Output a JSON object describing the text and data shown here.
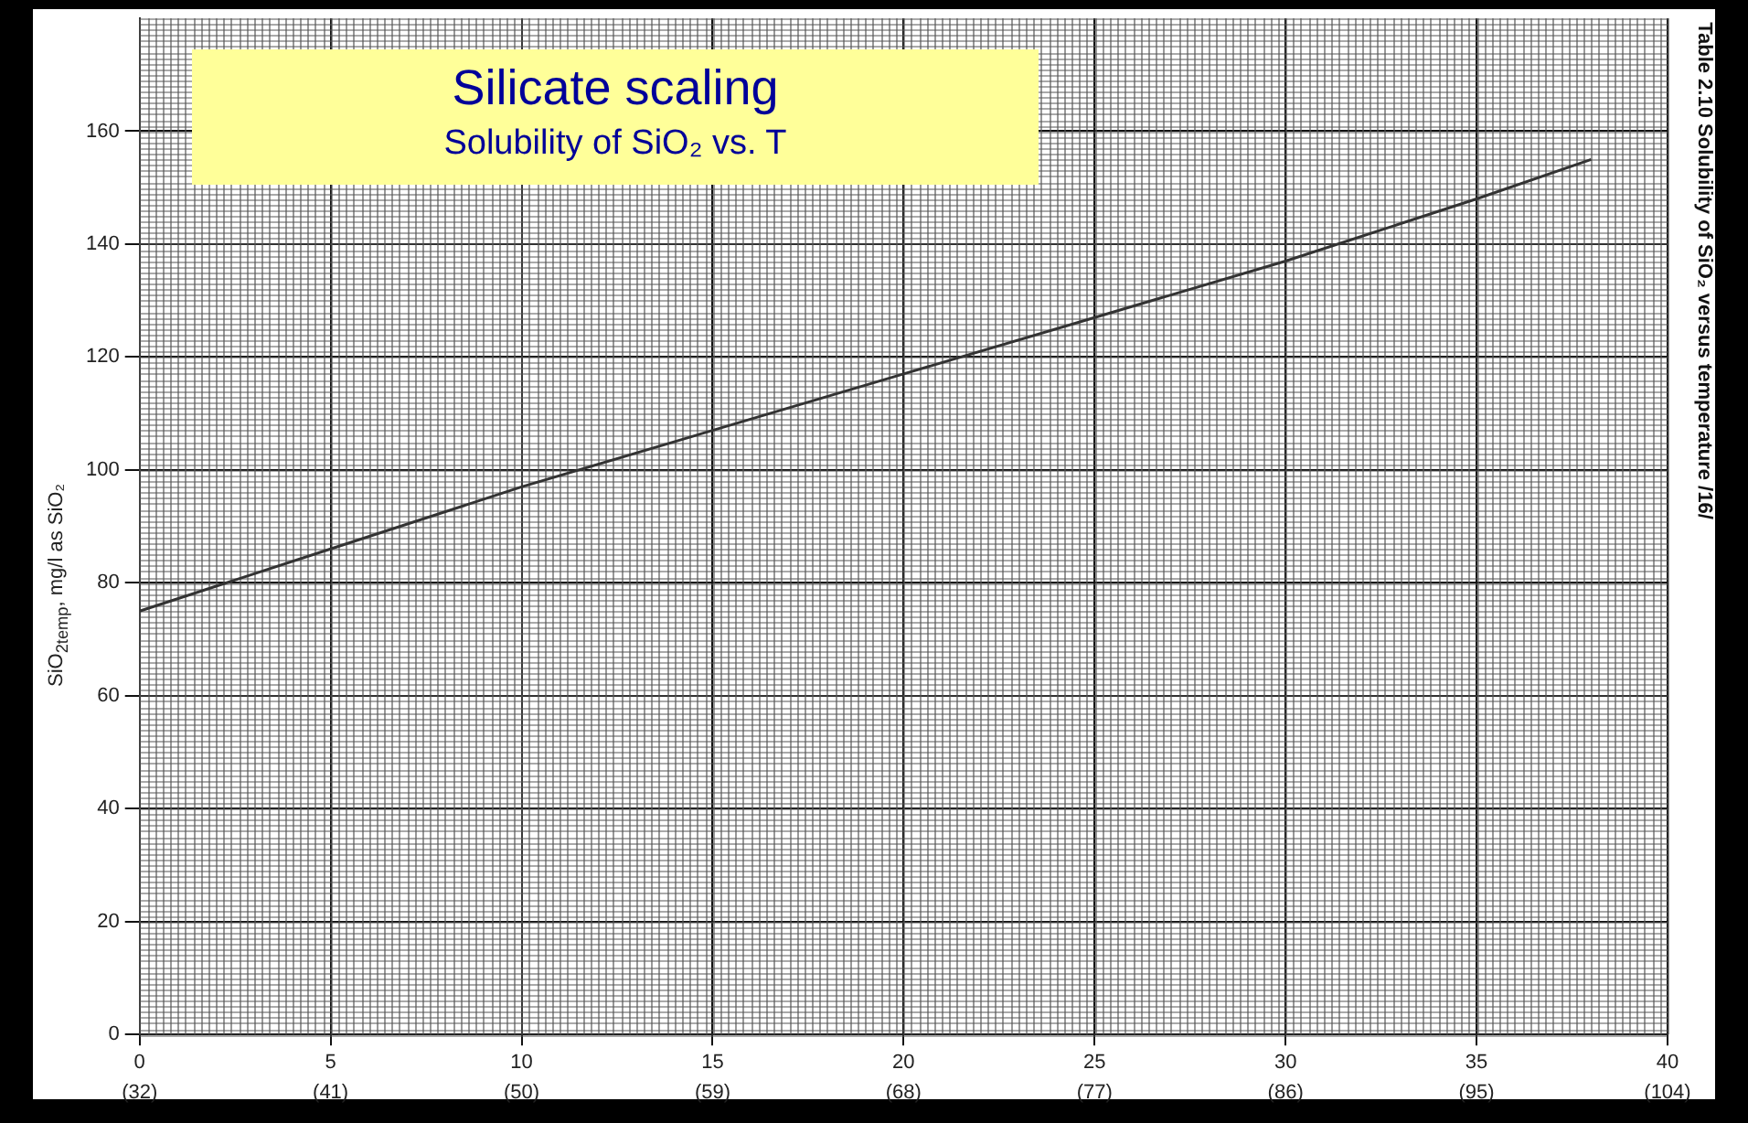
{
  "chart_data": {
    "type": "line",
    "title": "Silicate scaling",
    "subtitle": "Solubility of SiO₂ vs. T",
    "ylabel": "SiO$_{2temp}$, mg/l as SiO₂",
    "annotations": [
      "Table 2.10  Solubility of SiO₂ versus temperature /16/"
    ],
    "series": [
      {
        "color": "#333333",
        "x": [
          0,
          5,
          10,
          15,
          20,
          25,
          30,
          35,
          38
        ],
        "values": [
          75,
          86,
          97,
          107,
          117,
          127,
          137,
          148,
          155
        ]
      }
    ],
    "xlim": [
      0,
      40
    ],
    "xticks": [
      0,
      5,
      10,
      15,
      20,
      25,
      30,
      35,
      40
    ],
    "x2lim": [
      32,
      104
    ],
    "x2ticks": [
      {
        "value": 32,
        "label": "(32)"
      },
      {
        "value": 41,
        "label": "(41)"
      },
      {
        "value": 50,
        "label": "(50)"
      },
      {
        "value": 59,
        "label": "(59)"
      },
      {
        "value": 68,
        "label": "(68)"
      },
      {
        "value": 77,
        "label": "(77)"
      },
      {
        "value": 86,
        "label": "(86)"
      },
      {
        "value": 95,
        "label": "(95)"
      },
      {
        "value": 104,
        "label": "(104)"
      }
    ],
    "ylim": [
      0,
      180
    ],
    "yticks": [
      0,
      20,
      40,
      60,
      80,
      100,
      120,
      140,
      160
    ],
    "grid": true,
    "legend": false,
    "marker": "none",
    "line_style": "solid"
  }
}
